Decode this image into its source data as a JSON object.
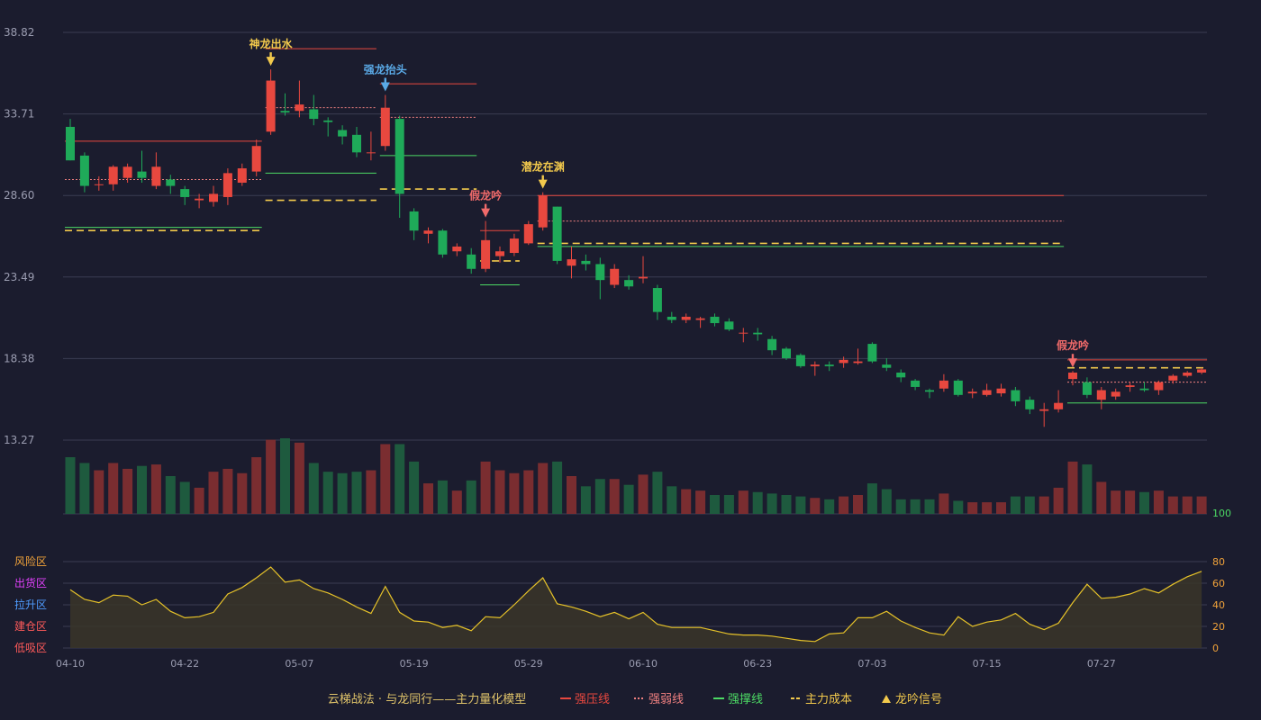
{
  "colors": {
    "background": "#1b1c2e",
    "up": "#e8483f",
    "down": "#1faa59",
    "vol_up": "#7a2d30",
    "vol_down": "#1e5a3e",
    "grid": "#3b3d52",
    "axis_text": "#9a9cb0",
    "osc_line": "#e6c229",
    "osc_fill": "#3a3528",
    "strong_pressure": "#e8483f",
    "weak_line": "#f08080",
    "support": "#4cd964",
    "cost": "#f2c94c"
  },
  "chart_data": [
    {
      "type": "candlestick",
      "y_ticks": [
        "38.82",
        "33.71",
        "28.60",
        "23.49",
        "18.38",
        "13.27"
      ],
      "ylim": [
        13.27,
        38.82
      ],
      "x_ticks": [
        "04-10",
        "04-22",
        "05-07",
        "05-19",
        "05-29",
        "06-10",
        "06-23",
        "07-03",
        "07-15",
        "07-27"
      ],
      "x_tick_index": [
        0,
        8,
        16,
        24,
        32,
        40,
        48,
        56,
        64,
        72
      ],
      "ohlc": [
        [
          32.9,
          30.8,
          33.4,
          30.8
        ],
        [
          31.1,
          29.2,
          31.3,
          28.8
        ],
        [
          29.3,
          29.3,
          29.8,
          28.9
        ],
        [
          29.3,
          30.4,
          30.5,
          28.9
        ],
        [
          29.7,
          30.4,
          30.6,
          29.4
        ],
        [
          30.1,
          29.7,
          31.4,
          29.4
        ],
        [
          29.2,
          30.4,
          31.3,
          29.0
        ],
        [
          29.6,
          29.2,
          29.9,
          28.7
        ],
        [
          29.0,
          28.5,
          29.2,
          28.0
        ],
        [
          28.3,
          28.4,
          28.7,
          27.8
        ],
        [
          28.2,
          28.7,
          29.2,
          27.9
        ],
        [
          28.5,
          30.0,
          30.3,
          28.0
        ],
        [
          29.4,
          30.3,
          30.6,
          29.2
        ],
        [
          30.1,
          31.7,
          32.1,
          29.8
        ],
        [
          32.6,
          35.8,
          36.5,
          32.4
        ],
        [
          33.9,
          33.8,
          35.0,
          33.6
        ],
        [
          33.9,
          34.3,
          35.8,
          33.5
        ],
        [
          34.0,
          33.4,
          34.9,
          33.0
        ],
        [
          33.3,
          33.2,
          33.5,
          32.3
        ],
        [
          32.7,
          32.3,
          33.0,
          31.8
        ],
        [
          32.4,
          31.3,
          32.9,
          31.0
        ],
        [
          31.3,
          31.3,
          32.6,
          30.8
        ],
        [
          31.7,
          34.1,
          34.9,
          31.4
        ],
        [
          33.4,
          28.7,
          33.6,
          27.2
        ],
        [
          27.6,
          26.4,
          27.8,
          25.8
        ],
        [
          26.2,
          26.4,
          26.6,
          25.6
        ],
        [
          26.4,
          24.9,
          26.5,
          24.7
        ],
        [
          25.1,
          25.4,
          25.6,
          24.8
        ],
        [
          24.9,
          24.0,
          25.3,
          23.7
        ],
        [
          24.0,
          25.8,
          27.0,
          23.8
        ],
        [
          24.8,
          25.1,
          25.4,
          24.4
        ],
        [
          25.0,
          25.9,
          26.2,
          24.8
        ],
        [
          25.6,
          26.8,
          27.0,
          25.5
        ],
        [
          26.6,
          28.6,
          28.8,
          26.4
        ],
        [
          27.9,
          24.5,
          27.9,
          24.3
        ],
        [
          24.2,
          24.6,
          25.4,
          23.4
        ],
        [
          24.5,
          24.3,
          24.9,
          23.9
        ],
        [
          24.3,
          23.3,
          24.7,
          22.1
        ],
        [
          23.0,
          24.0,
          24.3,
          22.8
        ],
        [
          23.3,
          22.9,
          23.6,
          22.7
        ],
        [
          23.4,
          23.5,
          24.8,
          23.1
        ],
        [
          22.8,
          21.3,
          23.0,
          20.8
        ],
        [
          21.0,
          20.8,
          21.3,
          20.6
        ],
        [
          20.8,
          21.0,
          21.2,
          20.6
        ],
        [
          20.8,
          20.9,
          21.0,
          20.3
        ],
        [
          21.0,
          20.6,
          21.2,
          20.4
        ],
        [
          20.7,
          20.2,
          20.9,
          20.1
        ],
        [
          20.0,
          20.0,
          20.3,
          19.4
        ],
        [
          20.0,
          19.9,
          20.3,
          19.5
        ],
        [
          19.6,
          18.9,
          19.8,
          18.6
        ],
        [
          19.0,
          18.4,
          19.1,
          18.3
        ],
        [
          18.6,
          17.9,
          18.7,
          17.8
        ],
        [
          17.9,
          18.0,
          18.2,
          17.3
        ],
        [
          18.0,
          17.9,
          18.2,
          17.6
        ],
        [
          18.1,
          18.3,
          18.5,
          17.8
        ],
        [
          18.1,
          18.2,
          19.0,
          18.0
        ],
        [
          19.3,
          18.2,
          19.4,
          18.1
        ],
        [
          18.0,
          17.8,
          18.4,
          17.6
        ],
        [
          17.5,
          17.2,
          17.7,
          16.9
        ],
        [
          17.0,
          16.6,
          17.1,
          16.4
        ],
        [
          16.4,
          16.3,
          16.5,
          15.9
        ],
        [
          16.5,
          17.0,
          17.4,
          16.3
        ],
        [
          17.0,
          16.1,
          17.1,
          16.0
        ],
        [
          16.2,
          16.3,
          16.5,
          15.9
        ],
        [
          16.1,
          16.4,
          16.8,
          16.0
        ],
        [
          16.2,
          16.5,
          16.8,
          16.0
        ],
        [
          16.4,
          15.7,
          16.6,
          15.4
        ],
        [
          15.8,
          15.2,
          16.0,
          14.9
        ],
        [
          15.1,
          15.2,
          15.6,
          14.1
        ],
        [
          15.2,
          15.6,
          16.4,
          15.0
        ],
        [
          17.1,
          17.5,
          17.6,
          16.7
        ],
        [
          16.9,
          16.1,
          17.2,
          15.9
        ],
        [
          15.8,
          16.4,
          16.6,
          15.2
        ],
        [
          16.0,
          16.3,
          16.5,
          15.8
        ],
        [
          16.6,
          16.7,
          16.9,
          16.3
        ],
        [
          16.5,
          16.4,
          16.9,
          16.3
        ],
        [
          16.4,
          16.9,
          17.0,
          16.1
        ],
        [
          17.0,
          17.3,
          17.4,
          16.8
        ],
        [
          17.3,
          17.5,
          17.6,
          17.2
        ],
        [
          17.5,
          17.7,
          17.8,
          17.4
        ]
      ],
      "volume": [
        39,
        35,
        30,
        35,
        31,
        33,
        34,
        26,
        22,
        18,
        29,
        31,
        28,
        39,
        51,
        52,
        49,
        35,
        29,
        28,
        29,
        30,
        48,
        48,
        36,
        21,
        23,
        16,
        23,
        36,
        30,
        28,
        30,
        35,
        36,
        26,
        19,
        24,
        24,
        20,
        27,
        29,
        19,
        17,
        16,
        13,
        13,
        16,
        15,
        14,
        13,
        12,
        11,
        10,
        12,
        13,
        21,
        17,
        10,
        10,
        10,
        14,
        9,
        8,
        8,
        8,
        12,
        12,
        12,
        18,
        36,
        34,
        22,
        16,
        16,
        15,
        16,
        12,
        12,
        12
      ],
      "signals": [
        {
          "label": "神龙出水",
          "index": 14,
          "price": 36.5,
          "color": "#f2c94c"
        },
        {
          "label": "强龙抬头",
          "index": 22,
          "price": 34.9,
          "color": "#5aa9e6"
        },
        {
          "label": "假龙吟",
          "index": 29,
          "price": 27.0,
          "color": "#f06a6a"
        },
        {
          "label": "潜龙在渊",
          "index": 33,
          "price": 28.8,
          "color": "#f2c94c"
        },
        {
          "label": "假龙吟",
          "index": 70,
          "price": 17.6,
          "color": "#f06a6a"
        }
      ],
      "levels": [
        {
          "kind": "strong_pressure",
          "from": 0,
          "to": 13,
          "price": 32.0
        },
        {
          "kind": "weak",
          "from": 0,
          "to": 13,
          "price": 29.6
        },
        {
          "kind": "support",
          "from": 0,
          "to": 13,
          "price": 26.6
        },
        {
          "kind": "cost",
          "from": 0,
          "to": 13,
          "price": 26.4
        },
        {
          "kind": "strong_pressure",
          "from": 14,
          "to": 21,
          "price": 37.8
        },
        {
          "kind": "weak",
          "from": 14,
          "to": 21,
          "price": 34.1
        },
        {
          "kind": "support",
          "from": 14,
          "to": 21,
          "price": 30.0
        },
        {
          "kind": "cost",
          "from": 14,
          "to": 21,
          "price": 28.3
        },
        {
          "kind": "strong_pressure",
          "from": 22,
          "to": 28,
          "price": 35.6
        },
        {
          "kind": "weak",
          "from": 22,
          "to": 28,
          "price": 33.5
        },
        {
          "kind": "support",
          "from": 22,
          "to": 28,
          "price": 31.1
        },
        {
          "kind": "cost",
          "from": 22,
          "to": 28,
          "price": 29.0
        },
        {
          "kind": "strong_pressure",
          "from": 29,
          "to": 31,
          "price": 26.4
        },
        {
          "kind": "cost",
          "from": 29,
          "to": 31,
          "price": 24.5
        },
        {
          "kind": "support",
          "from": 29,
          "to": 31,
          "price": 23.0
        },
        {
          "kind": "strong_pressure",
          "from": 33,
          "to": 69,
          "price": 28.6
        },
        {
          "kind": "weak",
          "from": 33,
          "to": 69,
          "price": 27.0
        },
        {
          "kind": "cost",
          "from": 33,
          "to": 69,
          "price": 25.6
        },
        {
          "kind": "support",
          "from": 33,
          "to": 69,
          "price": 25.4
        },
        {
          "kind": "strong_pressure",
          "from": 70,
          "to": 79,
          "price": 18.3
        },
        {
          "kind": "cost",
          "from": 70,
          "to": 79,
          "price": 17.8
        },
        {
          "kind": "weak",
          "from": 70,
          "to": 79,
          "price": 16.9
        },
        {
          "kind": "support",
          "from": 70,
          "to": 79,
          "price": 15.6
        }
      ]
    },
    {
      "type": "area",
      "ylim": [
        0,
        100
      ],
      "y_ticks": [
        "100",
        "80",
        "60",
        "40",
        "20",
        "0"
      ],
      "zones": [
        {
          "label": "风险区",
          "value": 80,
          "color": "#f2a33a"
        },
        {
          "label": "出货区",
          "value": 60,
          "color": "#e040fb"
        },
        {
          "label": "拉升区",
          "value": 40,
          "color": "#4f9cff"
        },
        {
          "label": "建仓区",
          "value": 20,
          "color": "#ff5a5a"
        },
        {
          "label": "低吸区",
          "value": 0,
          "color": "#ff5a5a"
        }
      ],
      "values": [
        54,
        45,
        42,
        49,
        48,
        40,
        45,
        34,
        28,
        29,
        33,
        50,
        56,
        65,
        75,
        61,
        63,
        55,
        51,
        45,
        38,
        32,
        57,
        33,
        25,
        24,
        19,
        21,
        16,
        29,
        28,
        40,
        53,
        65,
        41,
        38,
        34,
        29,
        33,
        27,
        33,
        22,
        19,
        19,
        19,
        16,
        13,
        12,
        12,
        11,
        9,
        7,
        6,
        13,
        14,
        28,
        28,
        34,
        25,
        19,
        14,
        12,
        29,
        20,
        24,
        26,
        32,
        22,
        17,
        23,
        42,
        59,
        46,
        47,
        50,
        55,
        51,
        59,
        66,
        71
      ]
    }
  ],
  "legend": {
    "model_label": "云梯战法 · 与龙同行——主力量化模型",
    "items": [
      {
        "label": "强压线",
        "color": "#e8483f",
        "style": "solid"
      },
      {
        "label": "强弱线",
        "color": "#f08080",
        "style": "dotted"
      },
      {
        "label": "强撑线",
        "color": "#4cd964",
        "style": "solid"
      },
      {
        "label": "主力成本",
        "color": "#f2c94c",
        "style": "dashed"
      },
      {
        "label": "龙吟信号",
        "color": "#f2c94c",
        "style": "triangle"
      }
    ]
  }
}
